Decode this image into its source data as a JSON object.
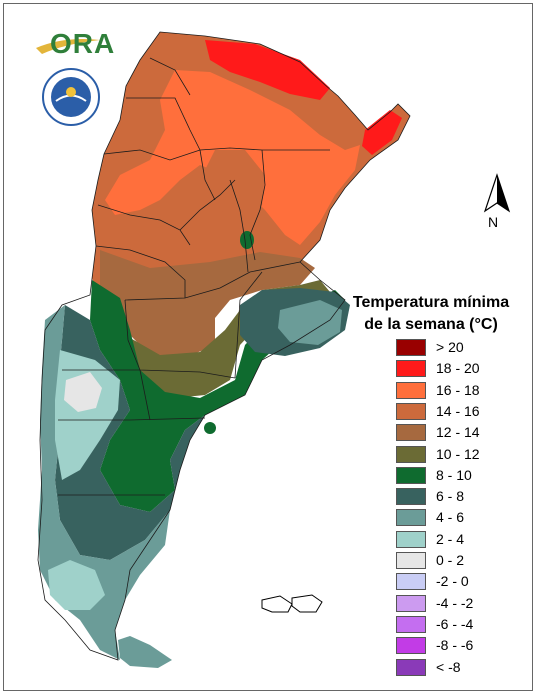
{
  "logo": {
    "text": "ORA"
  },
  "seal": {
    "text": "SERVICIO METEOROLOGICO NACIONAL · ARGENTINA"
  },
  "compass": {
    "label": "N"
  },
  "legend": {
    "title_line1": "Temperatura mínima",
    "title_line2": "de la semana (°C)",
    "items": [
      {
        "label": "> 20",
        "color": "#990000"
      },
      {
        "label": "18 - 20",
        "color": "#ff1a1a"
      },
      {
        "label": "16 - 18",
        "color": "#ff6f3c"
      },
      {
        "label": "14 - 16",
        "color": "#cc6a3c"
      },
      {
        "label": "12 - 14",
        "color": "#a6693f"
      },
      {
        "label": "10 - 12",
        "color": "#6b6b35"
      },
      {
        "label": "8 - 10",
        "color": "#0f6b2f"
      },
      {
        "label": "6 - 8",
        "color": "#38625f"
      },
      {
        "label": "4 - 6",
        "color": "#6b9c98"
      },
      {
        "label": "2 - 4",
        "color": "#9fd1ca"
      },
      {
        "label": "0 - 2",
        "color": "#e6e6e6"
      },
      {
        "label": "-2 - 0",
        "color": "#c9cdf5"
      },
      {
        "label": "-4 - -2",
        "color": "#cc9bf0"
      },
      {
        "label": "-6 - -4",
        "color": "#c46ef0"
      },
      {
        "label": "-8 - -6",
        "color": "#c23ce6"
      },
      {
        "label": "< -8",
        "color": "#8a3ab8"
      }
    ]
  }
}
